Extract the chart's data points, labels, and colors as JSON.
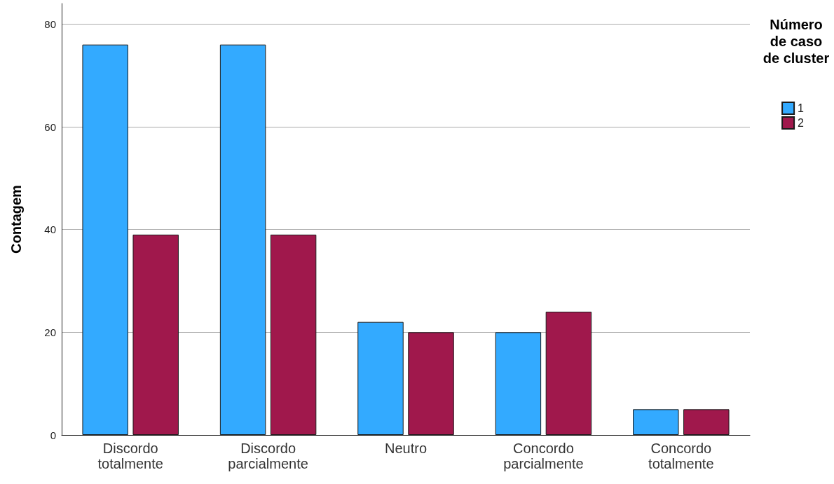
{
  "chart_data": {
    "type": "bar",
    "ylabel": "Contagem",
    "legend_title": "Número de caso de cluster",
    "categories": [
      "Discordo totalmente",
      "Discordo parcialmente",
      "Neutro",
      "Concordo parcialmente",
      "Concordo totalmente"
    ],
    "series": [
      {
        "name": "1",
        "color": "#33aaff",
        "values": [
          76,
          76,
          22,
          20,
          5
        ]
      },
      {
        "name": "2",
        "color": "#a0184c",
        "values": [
          39,
          39,
          20,
          24,
          5
        ]
      }
    ],
    "ylim": [
      0,
      84
    ],
    "yticks": [
      0,
      20,
      40,
      60,
      80
    ],
    "grid": "y",
    "legend": "top right"
  }
}
